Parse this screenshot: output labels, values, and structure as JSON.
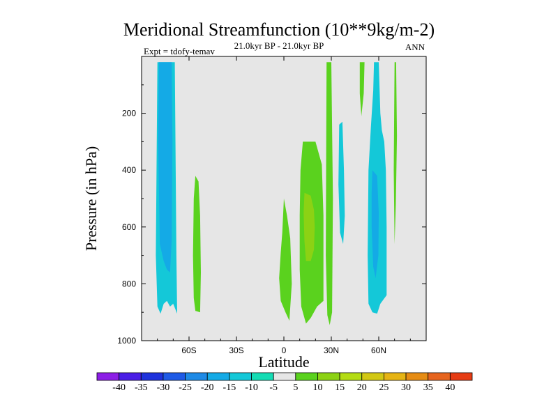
{
  "chart_data": {
    "type": "contour",
    "title": "Meridional Streamfunction (10**9kg/m-2)",
    "subtitle": "21.0kyr BP - 21.0kyr BP",
    "left_label": "Expt = tdofy-temav",
    "right_label": "ANN",
    "xlabel": "Latitude",
    "ylabel": "Pressure (in hPa)",
    "xlim": [
      -90,
      90
    ],
    "ylim": [
      1000,
      0
    ],
    "x_ticks": [
      {
        "value": -60,
        "label": "60S"
      },
      {
        "value": -30,
        "label": "30S"
      },
      {
        "value": 0,
        "label": "0"
      },
      {
        "value": 30,
        "label": "30N"
      },
      {
        "value": 60,
        "label": "60N"
      }
    ],
    "y_ticks": [
      {
        "value": 200,
        "label": "200"
      },
      {
        "value": 400,
        "label": "400"
      },
      {
        "value": 600,
        "label": "600"
      },
      {
        "value": 800,
        "label": "800"
      },
      {
        "value": 1000,
        "label": "1000"
      }
    ],
    "background_color": "#e6e6e6",
    "colorbar": {
      "levels": [
        -40,
        -35,
        -30,
        -25,
        -20,
        -15,
        -10,
        -5,
        5,
        10,
        15,
        20,
        25,
        30,
        35,
        40
      ],
      "colors": [
        "#8c1ee6",
        "#4a1ee6",
        "#1e32dc",
        "#1e5ae6",
        "#1e8ae6",
        "#14aae6",
        "#14c8d8",
        "#14dcb4",
        "#e6e6e6",
        "#5ad21e",
        "#8cd214",
        "#b4dc14",
        "#d2c814",
        "#e6b414",
        "#e68c14",
        "#e6641e",
        "#e63c14"
      ]
    },
    "regions": [
      {
        "level": -10,
        "color": "#14c8d8",
        "points": [
          [
            -80,
            20
          ],
          [
            -69,
            20
          ],
          [
            -68,
            700
          ],
          [
            -67.5,
            905
          ],
          [
            -70,
            870
          ],
          [
            -72,
            880
          ],
          [
            -74,
            860
          ],
          [
            -76,
            870
          ],
          [
            -78,
            905
          ],
          [
            -80,
            880
          ],
          [
            -81,
            700
          ]
        ]
      },
      {
        "level": -15,
        "color": "#14aae6",
        "points": [
          [
            -79,
            20
          ],
          [
            -71,
            20
          ],
          [
            -70.5,
            300
          ],
          [
            -71,
            650
          ],
          [
            -72,
            760
          ],
          [
            -74,
            750
          ],
          [
            -76,
            720
          ],
          [
            -78.5,
            660
          ],
          [
            -79.5,
            300
          ]
        ]
      },
      {
        "level": 5,
        "color": "#5ad21e",
        "points": [
          [
            -56,
            420
          ],
          [
            -54,
            440
          ],
          [
            -53,
            560
          ],
          [
            -52.5,
            760
          ],
          [
            -53,
            900
          ],
          [
            -56,
            895
          ],
          [
            -57,
            850
          ],
          [
            -57.5,
            700
          ],
          [
            -57,
            500
          ]
        ]
      },
      {
        "level": 5,
        "color": "#5ad21e",
        "points": [
          [
            0,
            500
          ],
          [
            2,
            560
          ],
          [
            4,
            640
          ],
          [
            5,
            800
          ],
          [
            3.5,
            930
          ],
          [
            1,
            900
          ],
          [
            -2,
            860
          ],
          [
            -3,
            780
          ],
          [
            -2,
            690
          ],
          [
            -1,
            620
          ]
        ]
      },
      {
        "level": 5,
        "color": "#5ad21e",
        "points": [
          [
            12,
            300
          ],
          [
            20,
            300
          ],
          [
            24,
            380
          ],
          [
            25,
            560
          ],
          [
            25,
            860
          ],
          [
            21,
            880
          ],
          [
            17,
            920
          ],
          [
            14,
            940
          ],
          [
            11,
            880
          ],
          [
            10,
            750
          ],
          [
            10,
            560
          ],
          [
            10.5,
            400
          ]
        ]
      },
      {
        "level": 10,
        "color": "#8cd214",
        "points": [
          [
            13,
            480
          ],
          [
            17,
            490
          ],
          [
            19,
            540
          ],
          [
            19.5,
            600
          ],
          [
            19,
            680
          ],
          [
            17,
            720
          ],
          [
            14,
            720
          ],
          [
            13,
            650
          ],
          [
            12.5,
            550
          ]
        ]
      },
      {
        "level": 5,
        "color": "#5ad21e",
        "points": [
          [
            27,
            20
          ],
          [
            30,
            20
          ],
          [
            31,
            500
          ],
          [
            30.5,
            900
          ],
          [
            29,
            945
          ],
          [
            27.5,
            910
          ],
          [
            26.5,
            700
          ],
          [
            26.8,
            300
          ]
        ]
      },
      {
        "level": -10,
        "color": "#14c8d8",
        "points": [
          [
            35,
            240
          ],
          [
            37,
            230
          ],
          [
            38,
            400
          ],
          [
            38.5,
            560
          ],
          [
            37.5,
            660
          ],
          [
            35.5,
            620
          ],
          [
            34.5,
            450
          ]
        ]
      },
      {
        "level": 5,
        "color": "#5ad21e",
        "points": [
          [
            48,
            20
          ],
          [
            51,
            20
          ],
          [
            50.5,
            130
          ],
          [
            49,
            210
          ],
          [
            48,
            130
          ]
        ]
      },
      {
        "level": -10,
        "color": "#14c8d8",
        "points": [
          [
            57,
            20
          ],
          [
            60,
            20
          ],
          [
            61,
            200
          ],
          [
            62,
            260
          ],
          [
            63.5,
            300
          ],
          [
            64.5,
            400
          ],
          [
            65,
            600
          ],
          [
            65,
            840
          ],
          [
            61,
            870
          ],
          [
            59,
            905
          ],
          [
            56,
            900
          ],
          [
            53.5,
            870
          ],
          [
            53,
            700
          ],
          [
            53.5,
            400
          ],
          [
            55,
            250
          ],
          [
            56.5,
            120
          ]
        ]
      },
      {
        "level": -15,
        "color": "#14aae6",
        "points": [
          [
            56,
            400
          ],
          [
            59,
            420
          ],
          [
            60,
            550
          ],
          [
            59.8,
            700
          ],
          [
            58,
            780
          ],
          [
            56.5,
            740
          ],
          [
            55.5,
            600
          ],
          [
            55.5,
            480
          ]
        ]
      },
      {
        "level": 5,
        "color": "#5ad21e",
        "points": [
          [
            70,
            20
          ],
          [
            71,
            20
          ],
          [
            71.5,
            280
          ],
          [
            70.8,
            520
          ],
          [
            70,
            660
          ],
          [
            69.5,
            400
          ]
        ]
      }
    ]
  }
}
